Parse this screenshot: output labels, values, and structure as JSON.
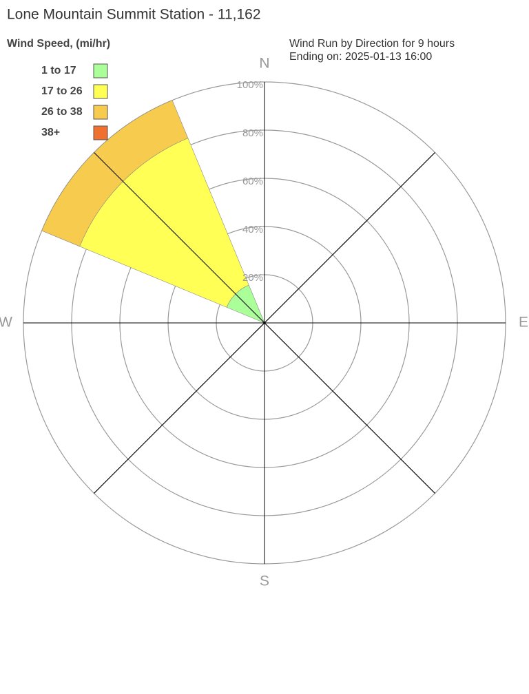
{
  "chart_data": {
    "type": "windrose",
    "title": "Lone Mountain Summit Station - 11,162",
    "legend_title": "Wind Speed, (mi/hr)",
    "subtitle": [
      "Wind Run by Direction for 9 hours",
      "Ending on: 2025-01-13 16:00"
    ],
    "categories": [
      "N",
      null,
      "E",
      null,
      "S",
      null,
      "W",
      null
    ],
    "series": [
      {
        "name": "1 to 17",
        "color": "#aaff99",
        "values": [
          0,
          0,
          0,
          0,
          0,
          0,
          0,
          17
        ]
      },
      {
        "name": "17 to 26",
        "color": "#ffff55",
        "values": [
          0,
          0,
          0,
          0,
          0,
          0,
          0,
          66
        ]
      },
      {
        "name": "26 to 38",
        "color": "#f7cb4d",
        "values": [
          0,
          0,
          0,
          0,
          0,
          0,
          0,
          17
        ]
      },
      {
        "name": "38+",
        "color": "#f07030",
        "values": [
          0,
          0,
          0,
          0,
          0,
          0,
          0,
          0
        ]
      }
    ],
    "rlim": [
      0,
      100
    ],
    "rticks": [
      {
        "value": 20,
        "label": "20%"
      },
      {
        "value": 40,
        "label": "40%"
      },
      {
        "value": 60,
        "label": "60%"
      },
      {
        "value": 80,
        "label": "80%"
      },
      {
        "value": 100,
        "label": "100%"
      }
    ]
  }
}
